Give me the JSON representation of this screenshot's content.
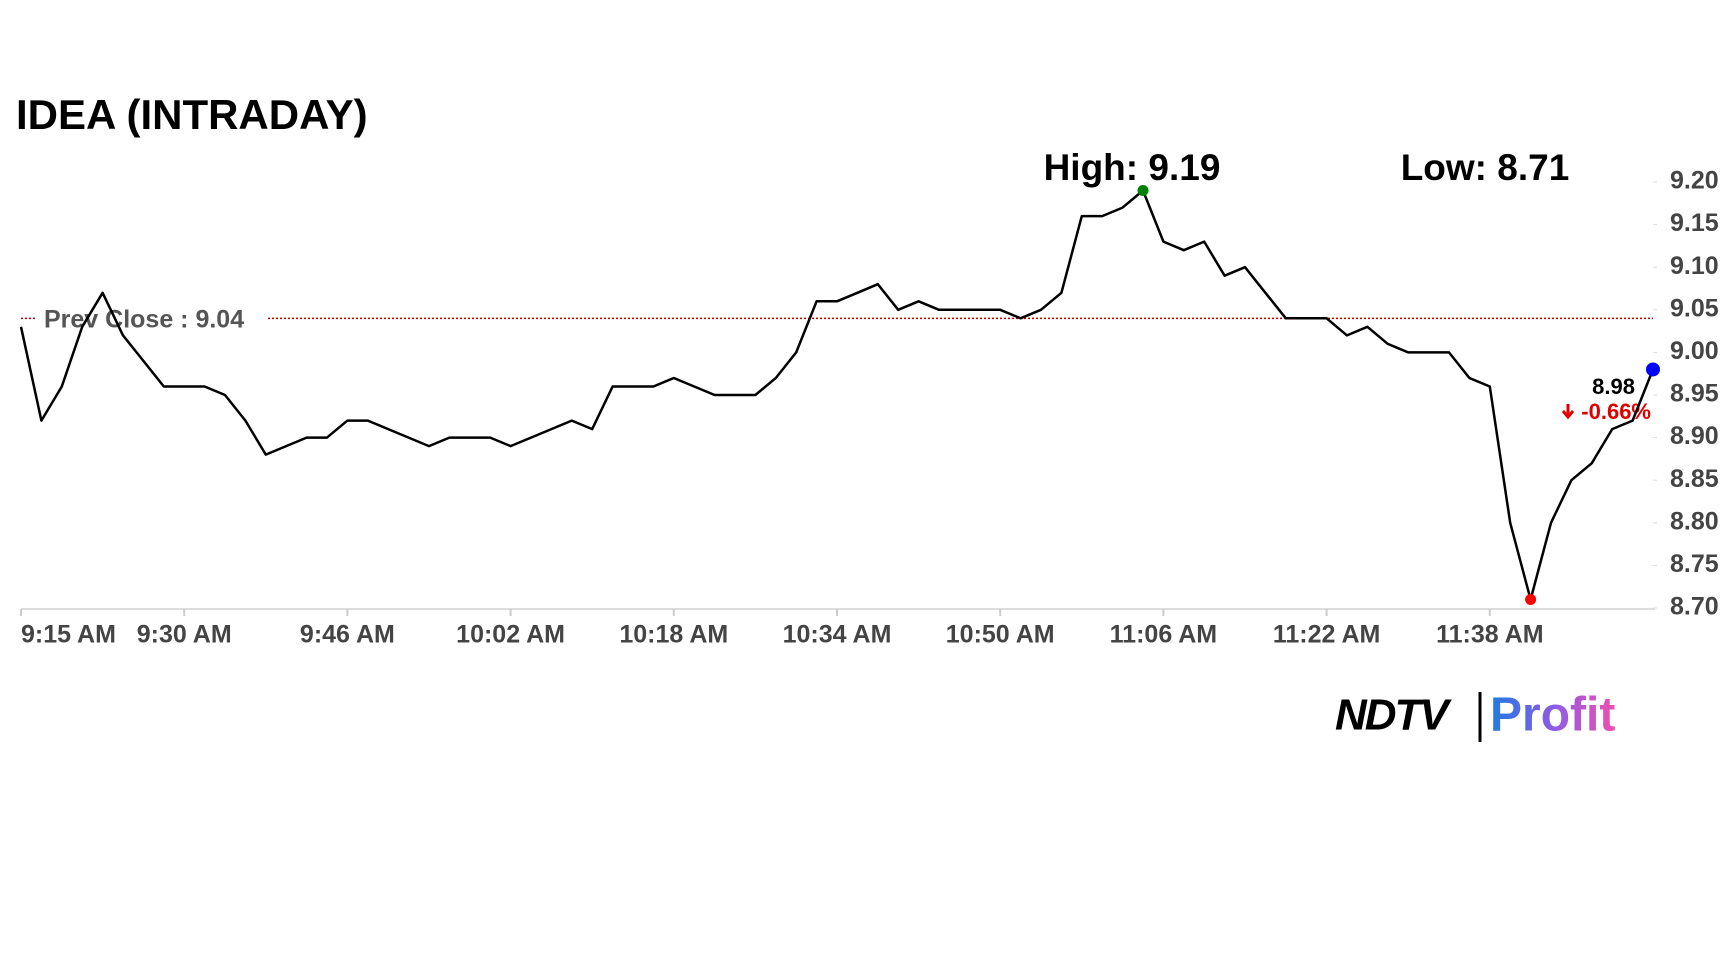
{
  "chart_data": {
    "type": "line",
    "title": "IDEA (INTRADAY)",
    "x": [
      0,
      2,
      4,
      6,
      8,
      10,
      12,
      14,
      16,
      18,
      20,
      22,
      24,
      26,
      28,
      30,
      32,
      34,
      36,
      38,
      40,
      42,
      44,
      46,
      48,
      50,
      52,
      54,
      56,
      58,
      60,
      62,
      64,
      66,
      68,
      70,
      72,
      74,
      76,
      78,
      80,
      82,
      84,
      86,
      88,
      90,
      92,
      94,
      96,
      98,
      100,
      102,
      104,
      106,
      108,
      110,
      112,
      114,
      116,
      118,
      120,
      122,
      124,
      126,
      128,
      130,
      132,
      134,
      136,
      138,
      140,
      142,
      144,
      146,
      148,
      150,
      152,
      154,
      156,
      158,
      160
    ],
    "series": [
      {
        "name": "IDEA",
        "color": "#000000",
        "values": [
          9.03,
          8.92,
          8.96,
          9.03,
          9.07,
          9.02,
          8.99,
          8.96,
          8.96,
          8.96,
          8.95,
          8.92,
          8.88,
          8.89,
          8.9,
          8.9,
          8.92,
          8.92,
          8.91,
          8.9,
          8.89,
          8.9,
          8.9,
          8.9,
          8.89,
          8.9,
          8.91,
          8.92,
          8.91,
          8.96,
          8.96,
          8.96,
          8.97,
          8.96,
          8.95,
          8.95,
          8.95,
          8.97,
          9.0,
          9.06,
          9.06,
          9.07,
          9.08,
          9.05,
          9.06,
          9.05,
          9.05,
          9.05,
          9.05,
          9.04,
          9.05,
          9.07,
          9.16,
          9.16,
          9.17,
          9.19,
          9.13,
          9.12,
          9.13,
          9.09,
          9.1,
          9.07,
          9.04,
          9.04,
          9.04,
          9.02,
          9.03,
          9.01,
          9.0,
          9.0,
          9.0,
          8.97,
          8.96,
          8.8,
          8.71,
          8.8,
          8.85,
          8.87,
          8.91,
          8.92,
          8.98
        ]
      }
    ],
    "xlim": [
      0,
      160
    ],
    "xticks": [
      {
        "value": 0,
        "label": "9:15 AM"
      },
      {
        "value": 16,
        "label": "9:30 AM"
      },
      {
        "value": 32,
        "label": "9:46 AM"
      },
      {
        "value": 48,
        "label": "10:02 AM"
      },
      {
        "value": 64,
        "label": "10:18 AM"
      },
      {
        "value": 80,
        "label": "10:34 AM"
      },
      {
        "value": 96,
        "label": "10:50 AM"
      },
      {
        "value": 112,
        "label": "11:06 AM"
      },
      {
        "value": 128,
        "label": "11:22 AM"
      },
      {
        "value": 144,
        "label": "11:38 AM"
      }
    ],
    "ylim": [
      8.7,
      9.2
    ],
    "yticks": [
      {
        "value": 9.2,
        "label": "9.20"
      },
      9.15,
      {
        "value": 9.1,
        "label": "9.10"
      },
      9.05,
      {
        "value": 9.0,
        "label": "9.00"
      },
      8.95,
      {
        "value": 8.9,
        "label": "8.90"
      },
      8.85,
      {
        "value": 8.8,
        "label": "8.80"
      },
      8.75,
      {
        "value": 8.7,
        "label": "8.70"
      }
    ],
    "high": {
      "value": 9.19,
      "label": "High: 9.19",
      "color": "#008000"
    },
    "low": {
      "value": 8.71,
      "label": "Low: 8.71",
      "color": "#ff0000"
    },
    "prev_close": {
      "value": 9.04,
      "label": "Prev Close : 9.04",
      "color": "#c00000"
    },
    "last": 8.98,
    "last_color": "#0000ff",
    "change": {
      "value": -0.66,
      "label": "-0.66%",
      "color": "#e00000"
    },
    "brand": [
      "NDTV",
      "Profit"
    ]
  }
}
